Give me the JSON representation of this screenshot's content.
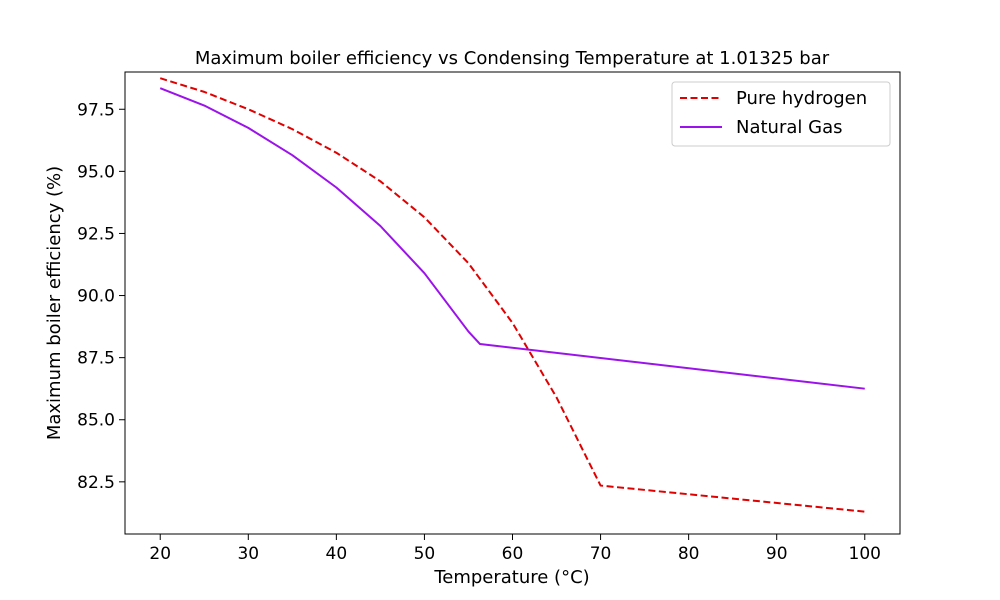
{
  "chart_data": {
    "type": "line",
    "title": "Maximum boiler efficiency vs Condensing Temperature at 1.01325 bar",
    "xlabel": "Temperature (°C)",
    "ylabel": "Maximum boiler efficiency (%)",
    "xlim": [
      16,
      104
    ],
    "ylim": [
      80.4,
      99.0
    ],
    "xticks": [
      20,
      30,
      40,
      50,
      60,
      70,
      80,
      90,
      100
    ],
    "yticks": [
      82.5,
      85.0,
      87.5,
      90.0,
      92.5,
      95.0,
      97.5
    ],
    "grid": false,
    "legend_position": "top-right",
    "series": [
      {
        "name": "Pure hydrogen",
        "color": "#e00000",
        "linestyle": "dashed",
        "x": [
          20,
          25,
          30,
          35,
          40,
          45,
          50,
          55,
          60,
          65,
          70,
          100
        ],
        "y": [
          98.75,
          98.2,
          97.5,
          96.7,
          95.75,
          94.6,
          93.15,
          91.3,
          88.9,
          85.9,
          82.35,
          81.3
        ]
      },
      {
        "name": "Natural Gas",
        "color": "#9b12eb",
        "linestyle": "solid",
        "x": [
          20,
          25,
          30,
          35,
          40,
          45,
          50,
          55,
          56.3,
          100
        ],
        "y": [
          98.35,
          97.65,
          96.75,
          95.65,
          94.35,
          92.8,
          90.9,
          88.55,
          88.05,
          86.25
        ]
      }
    ]
  }
}
